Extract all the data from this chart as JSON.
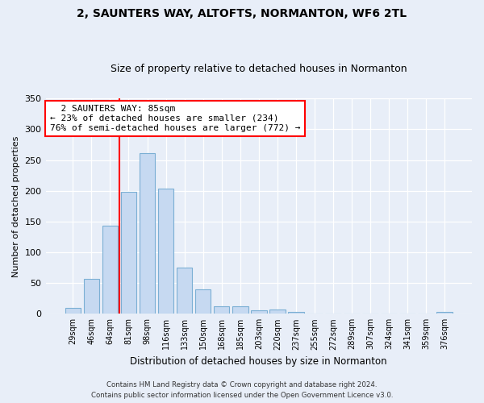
{
  "title1": "2, SAUNTERS WAY, ALTOFTS, NORMANTON, WF6 2TL",
  "title2": "Size of property relative to detached houses in Normanton",
  "xlabel": "Distribution of detached houses by size in Normanton",
  "ylabel": "Number of detached properties",
  "categories": [
    "29sqm",
    "46sqm",
    "64sqm",
    "81sqm",
    "98sqm",
    "116sqm",
    "133sqm",
    "150sqm",
    "168sqm",
    "185sqm",
    "203sqm",
    "220sqm",
    "237sqm",
    "255sqm",
    "272sqm",
    "289sqm",
    "307sqm",
    "324sqm",
    "341sqm",
    "359sqm",
    "376sqm"
  ],
  "values": [
    9,
    57,
    143,
    199,
    261,
    204,
    75,
    40,
    12,
    12,
    6,
    7,
    3,
    0,
    0,
    0,
    0,
    0,
    0,
    0,
    3
  ],
  "bar_color": "#c6d9f1",
  "bar_edge_color": "#7bafd4",
  "vline_x": 2.5,
  "annotation_text": "  2 SAUNTERS WAY: 85sqm\n← 23% of detached houses are smaller (234)\n76% of semi-detached houses are larger (772) →",
  "annotation_box_color": "white",
  "annotation_box_edge_color": "red",
  "vline_color": "red",
  "ylim": [
    0,
    350
  ],
  "yticks": [
    0,
    50,
    100,
    150,
    200,
    250,
    300,
    350
  ],
  "footer1": "Contains HM Land Registry data © Crown copyright and database right 2024.",
  "footer2": "Contains public sector information licensed under the Open Government Licence v3.0.",
  "bg_color": "#e8eef8",
  "plot_bg_color": "#e8eef8",
  "title_fontsize": 10,
  "subtitle_fontsize": 9,
  "ylabel_fontsize": 8,
  "xlabel_fontsize": 8.5
}
